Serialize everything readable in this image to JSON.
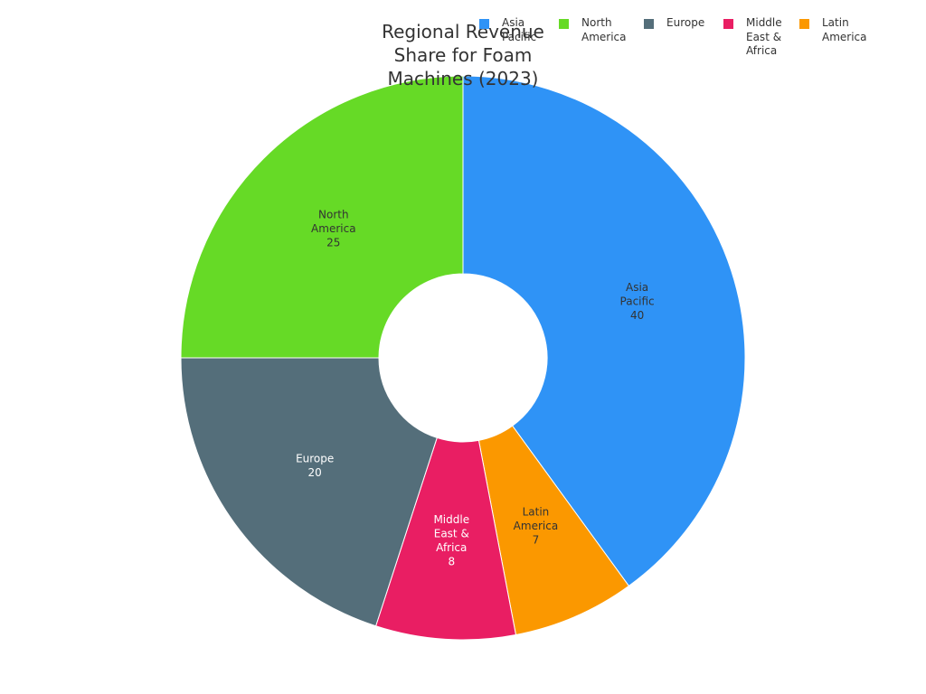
{
  "chart_data": {
    "type": "pie",
    "title": "Regional Revenue Share for Foam Machines (2023)",
    "donut": true,
    "legend_position": "top-right",
    "slices": [
      {
        "label": "Asia Pacific",
        "label_lines": [
          "Asia",
          "Pacific"
        ],
        "value": 40,
        "color": "#2f93f6",
        "label_color": "#333333"
      },
      {
        "label": "Latin America",
        "label_lines": [
          "Latin",
          "America"
        ],
        "value": 7,
        "color": "#fb9800",
        "label_color": "#333333"
      },
      {
        "label": "Middle East & Africa",
        "label_lines": [
          "Middle",
          "East &",
          "Africa"
        ],
        "value": 8,
        "color": "#e91e63",
        "label_color": "#ffffff"
      },
      {
        "label": "Europe",
        "label_lines": [
          "Europe"
        ],
        "value": 20,
        "color": "#546e7a",
        "label_color": "#ffffff"
      },
      {
        "label": "North America",
        "label_lines": [
          "North",
          "America"
        ],
        "value": 25,
        "color": "#66da26",
        "label_color": "#333333"
      }
    ],
    "legend": [
      {
        "label": "Asia Pacific",
        "color": "#2f93f6"
      },
      {
        "label": "North America",
        "color": "#66da26"
      },
      {
        "label": "Europe",
        "color": "#546e7a"
      },
      {
        "label": "Middle East & Africa",
        "color": "#e91e63"
      },
      {
        "label": "Latin America",
        "color": "#fb9800"
      }
    ]
  }
}
